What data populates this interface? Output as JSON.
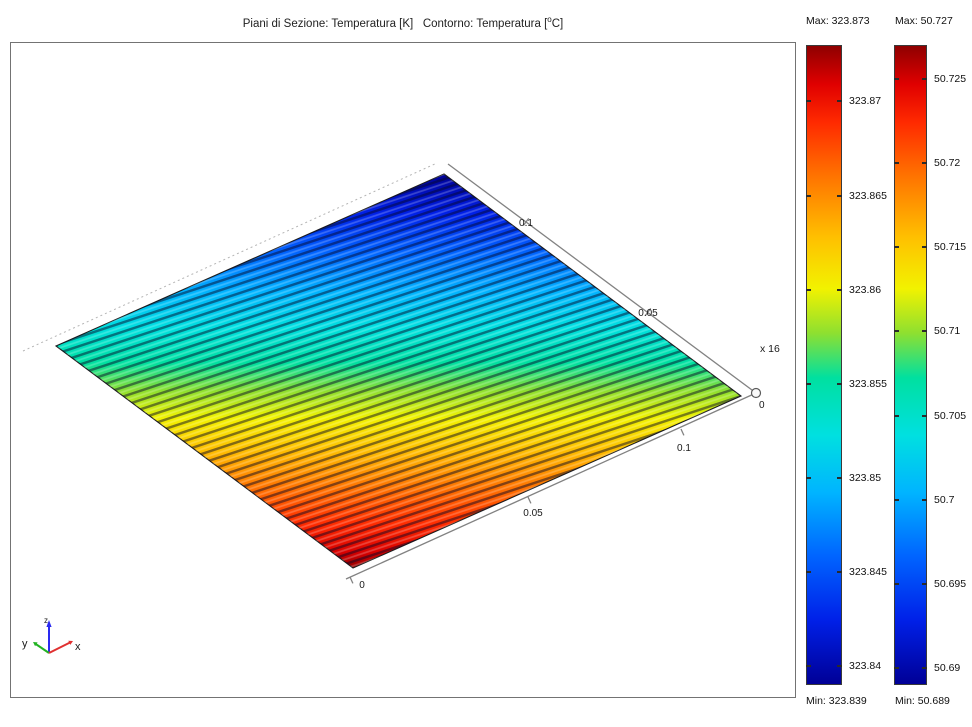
{
  "title": {
    "part1": "Piani di Sezione: Temperatura [K]",
    "gap": "   ",
    "part2_prefix": "Contorno: Temperatura [",
    "part2_sup": "o",
    "part2_suffix": "C]"
  },
  "plot": {
    "x_tick_labels": [
      "0",
      "0.05",
      "0.1"
    ],
    "y_tick_labels": [
      "0.1",
      "0.05"
    ],
    "origin_label": "0",
    "scale_label": "x 16",
    "triad": {
      "x": "x",
      "y": "y",
      "z": "z"
    }
  },
  "colorbars": [
    {
      "id": "slice-colorbar",
      "unit": "K",
      "max_label": "Max: 323.873",
      "min_label": "Min: 323.839",
      "max": 323.873,
      "min": 323.839,
      "tick_values": [
        323.87,
        323.865,
        323.86,
        323.855,
        323.85,
        323.845,
        323.84
      ],
      "tick_labels": [
        "323.87",
        "323.865",
        "323.86",
        "323.855",
        "323.85",
        "323.845",
        "323.84"
      ]
    },
    {
      "id": "contour-colorbar",
      "unit": "°C",
      "max_label": "Max: 50.727",
      "min_label": "Min: 50.689",
      "max": 50.727,
      "min": 50.689,
      "tick_values": [
        50.725,
        50.72,
        50.715,
        50.71,
        50.705,
        50.7,
        50.695,
        50.69
      ],
      "tick_labels": [
        "50.725",
        "50.72",
        "50.715",
        "50.71",
        "50.705",
        "50.7",
        "50.695",
        "50.69"
      ]
    }
  ],
  "chart_data": {
    "type": "heatmap",
    "title": "Piani di Sezione: Temperatura [K]  Contorno: Temperatura [°C]",
    "colormap": "jet",
    "view": "3D perspective of a flat square plate (slice plot with contour lines)",
    "x_axis": {
      "ticks": [
        0,
        0.05,
        0.1
      ]
    },
    "y_axis": {
      "ticks": [
        0,
        0.05,
        0.1
      ]
    },
    "slice_temperature_K": {
      "min": 323.839,
      "max": 323.873,
      "colorbar_ticks": [
        323.87,
        323.865,
        323.86,
        323.855,
        323.85,
        323.845,
        323.84
      ]
    },
    "contour_temperature_C": {
      "min": 50.689,
      "max": 50.727,
      "contour_step": 0.001,
      "colorbar_ticks": [
        50.725,
        50.72,
        50.715,
        50.71,
        50.705,
        50.7,
        50.695,
        50.69
      ]
    },
    "gradient": "cold (dark blue) at back corner to hot (dark red) at front corner; side corners cyan/green"
  }
}
